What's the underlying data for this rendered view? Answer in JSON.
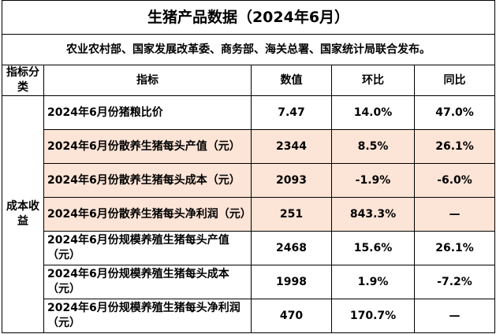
{
  "header": {
    "title": "生猪产品数据（2024年6月）",
    "subtitle": "农业农村部、国家发展改革委、商务部、海关总署、国家统计局联合发布。"
  },
  "table": {
    "columns": [
      "指标分类",
      "指标",
      "数值",
      "环比",
      "同比"
    ],
    "group": "成本收益",
    "rows": [
      [
        "2024年6月份猪粮比价",
        "7.47",
        "14.0%",
        "47.0%"
      ],
      [
        "2024年6月份散养生猪每头产值（元）",
        "2344",
        "8.5%",
        "26.1%"
      ],
      [
        "2024年6月份散养生猪每头成本（元）",
        "2093",
        "-1.9%",
        "-6.0%"
      ],
      [
        "2024年6月份散养生猪每头净利润（元）",
        "251",
        "843.3%",
        "—"
      ],
      [
        "2024年6月份规模养殖生猪每头产值（元）",
        "2468",
        "15.6%",
        "26.1%"
      ],
      [
        "2024年6月份规模养殖生猪每头成本（元）",
        "1998",
        "1.9%",
        "-7.2%"
      ],
      [
        "2024年6月份规模养殖生猪每头净利润（元）",
        "470",
        "170.7%",
        "—"
      ]
    ]
  }
}
